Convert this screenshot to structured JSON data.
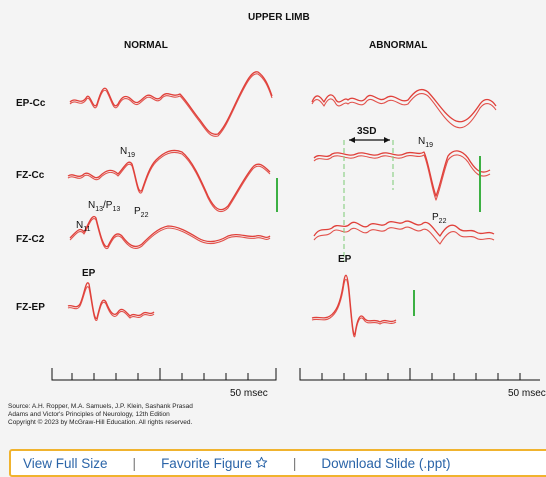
{
  "figure": {
    "title": "UPPER LIMB",
    "normal_heading": "NORMAL",
    "abnormal_heading": "ABNORMAL",
    "row_labels": [
      "EP-Cc",
      "FZ-Cc",
      "FZ-C2",
      "FZ-EP"
    ],
    "peaks": {
      "n19": "N",
      "n19_sub": "19",
      "n13": "N",
      "n13_sub": "13",
      "slash_p": "/P",
      "p13_sub": "13",
      "n11": "N",
      "n11_sub": "11",
      "p22": "P",
      "p22_sub": "22",
      "ep": "EP",
      "abn_n19": "N",
      "abn_n19_sub": "19",
      "abn_p22": "P",
      "abn_p22_sub": "22",
      "abn_ep": "EP",
      "three_sd": "3SD"
    },
    "time_scale_label": "50 msec",
    "time_scale_label_right": "50 msec",
    "accent_color": "#e0403a",
    "scale_bar_color": "#3cb043"
  },
  "source": {
    "line1": "Source: A.H. Ropper, M.A. Samuels, J.P. Klein, Sashank Prasad",
    "line2": "Adams and Victor's Principles of Neurology, 12th Edition",
    "line3": "Copyright © 2023 by McGraw-Hill Education. All rights reserved."
  },
  "toolbar": {
    "view_full_size": "View Full Size",
    "favorite_figure": "Favorite Figure",
    "favorite_icon": "star-outline-icon",
    "download_slide": "Download Slide (.ppt)",
    "separator": "|",
    "border_color": "#f0b32e",
    "link_color": "#2a64a8"
  }
}
